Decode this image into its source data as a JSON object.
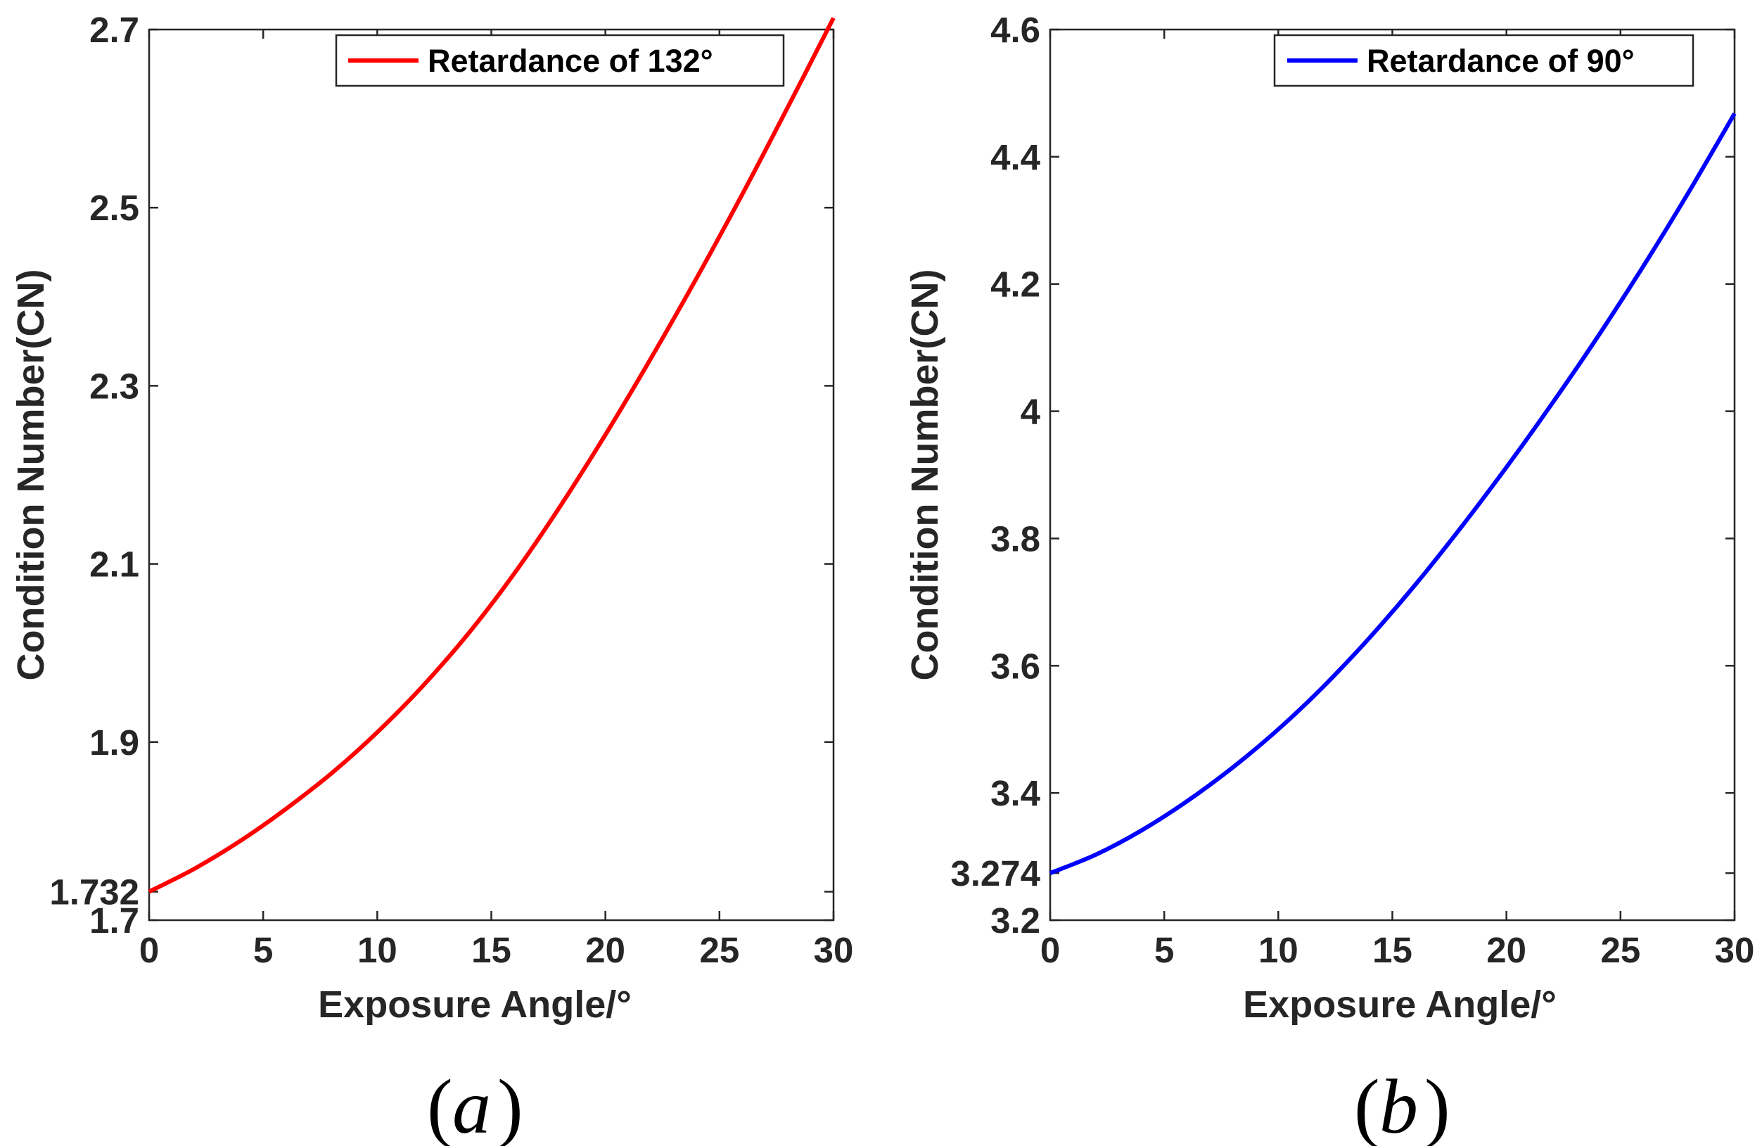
{
  "chart_data": [
    {
      "type": "line",
      "panel_label": "a",
      "title": "",
      "xlabel": "Exposure Angle/°",
      "ylabel": "Condition Number(CN)",
      "xlim": [
        0,
        30
      ],
      "ylim": [
        1.7,
        2.7
      ],
      "x_ticks": [
        "0",
        "5",
        "10",
        "15",
        "20",
        "25",
        "30"
      ],
      "y_ticks": [
        "1.7",
        "1.9",
        "2.1",
        "2.3",
        "2.5",
        "2.7"
      ],
      "y_tick_values": [
        1.7,
        1.9,
        2.1,
        2.3,
        2.5,
        2.7
      ],
      "extra_y_tick": {
        "label": "1.732",
        "value": 1.732
      },
      "legend_position": "top-right",
      "series": [
        {
          "name": "Retardance of 132°",
          "color": "#ff0000",
          "x": [
            0,
            2,
            4,
            6,
            8,
            10,
            12,
            14,
            16,
            18,
            20,
            22,
            24,
            26,
            28,
            30
          ],
          "values": [
            1.732,
            1.758,
            1.789,
            1.825,
            1.865,
            1.911,
            1.963,
            2.022,
            2.089,
            2.164,
            2.245,
            2.331,
            2.421,
            2.515,
            2.613,
            2.713
          ]
        }
      ]
    },
    {
      "type": "line",
      "panel_label": "b",
      "title": "",
      "xlabel": "Exposure Angle/°",
      "ylabel": "Condition Number(CN)",
      "xlim": [
        0,
        30
      ],
      "ylim": [
        3.2,
        4.6
      ],
      "x_ticks": [
        "0",
        "5",
        "10",
        "15",
        "20",
        "25",
        "30"
      ],
      "y_ticks": [
        "3.2",
        "3.4",
        "3.6",
        "3.8",
        "4",
        "4.2",
        "4.4",
        "4.6"
      ],
      "y_tick_values": [
        3.2,
        3.4,
        3.6,
        3.8,
        4.0,
        4.2,
        4.4,
        4.6
      ],
      "extra_y_tick": {
        "label": "3.274",
        "value": 3.274
      },
      "legend_position": "top-right",
      "series": [
        {
          "name": "Retardance of 90°",
          "color": "#0000ff",
          "x": [
            0,
            2,
            4,
            6,
            8,
            10,
            12,
            14,
            16,
            18,
            20,
            22,
            24,
            26,
            28,
            30
          ],
          "values": [
            3.274,
            3.303,
            3.341,
            3.387,
            3.44,
            3.5,
            3.568,
            3.644,
            3.727,
            3.817,
            3.912,
            4.012,
            4.117,
            4.228,
            4.345,
            4.468
          ]
        }
      ]
    }
  ]
}
